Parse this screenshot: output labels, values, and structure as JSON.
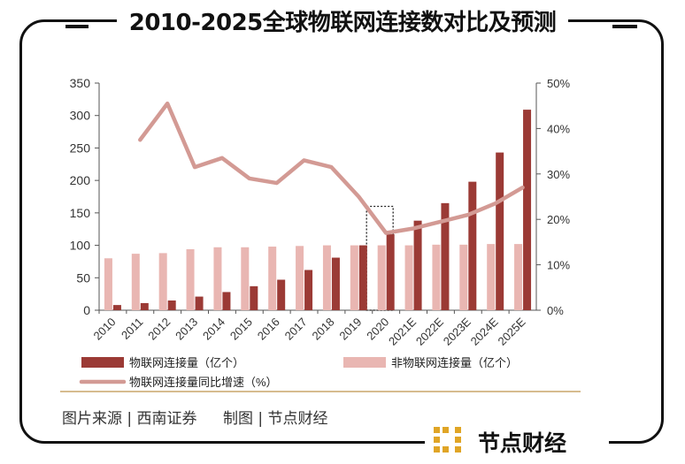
{
  "title": "2010-2025全球物联网连接数对比及预测",
  "chart_data": {
    "type": "bar",
    "categories": [
      "2010",
      "2011",
      "2012",
      "2013",
      "2014",
      "2015",
      "2016",
      "2017",
      "2018",
      "2019",
      "2020",
      "2021E",
      "2022E",
      "2023E",
      "2024E",
      "2025E"
    ],
    "series": [
      {
        "name": "物联网连接量（亿个）",
        "type": "bar",
        "axis": "left",
        "color": "#9b3a35",
        "values": [
          8,
          11,
          15,
          21,
          28,
          37,
          47,
          62,
          81,
          100,
          117,
          138,
          165,
          198,
          243,
          309
        ]
      },
      {
        "name": "非物联网连接量（亿个）",
        "type": "bar",
        "axis": "left",
        "color": "#e9b6b2",
        "values": [
          80,
          87,
          88,
          94,
          97,
          97,
          98,
          99,
          100,
          100,
          100,
          100,
          101,
          101,
          102,
          102
        ]
      },
      {
        "name": "物联网连接量同比增速（%）",
        "type": "line",
        "axis": "right",
        "color": "#d39a94",
        "values": [
          null,
          37.5,
          45.5,
          31.5,
          33.5,
          29,
          28,
          33,
          31.5,
          25,
          17,
          18,
          19.5,
          21,
          23.5,
          27
        ]
      }
    ],
    "left_axis": {
      "min": 0,
      "max": 350,
      "ticks": [
        "0",
        "50",
        "100",
        "150",
        "200",
        "250",
        "300",
        "350"
      ]
    },
    "right_axis": {
      "min": 0,
      "max": 50,
      "ticks": [
        "0%",
        "10%",
        "20%",
        "30%",
        "40%",
        "50%"
      ]
    },
    "highlight_category": "2020",
    "legend": [
      "物联网连接量（亿个）",
      "非物联网连接量（亿个）",
      "物联网连接量同比增速（%）"
    ]
  },
  "source": {
    "image_source": "图片来源 | 西南证券",
    "made_by": "制图 | 节点财经"
  },
  "brand": {
    "name": "节点财经",
    "color": "#e0a526"
  }
}
